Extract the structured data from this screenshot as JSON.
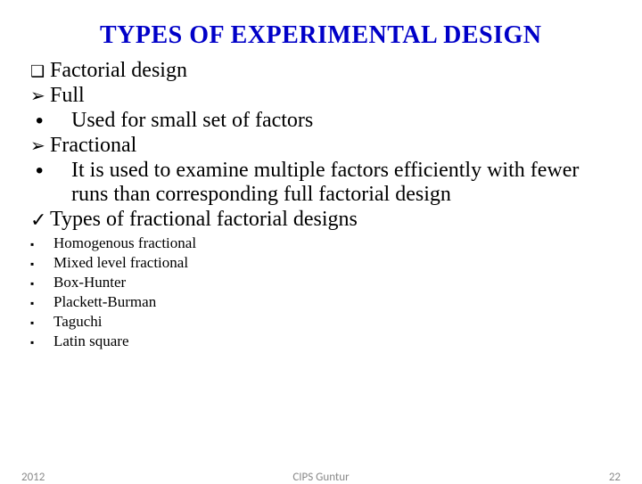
{
  "title": "TYPES OF EXPERIMENTAL DESIGN",
  "items": {
    "factorial": "Factorial design",
    "full": "Full",
    "full_desc": "Used for small set of factors",
    "fractional": "Fractional",
    "fractional_desc": "It is used to examine multiple factors efficiently with fewer runs than corresponding full factorial design",
    "types_heading": "Types of fractional factorial designs",
    "sub": [
      "Homogenous  fractional",
      "Mixed level fractional",
      "Box-Hunter",
      "Plackett-Burman",
      "Taguchi",
      "Latin square"
    ]
  },
  "footer": {
    "year": "2012",
    "center": "CIPS Guntur",
    "page": "22"
  },
  "colors": {
    "title": "#0000c8",
    "body": "#000000",
    "footer": "#8a8a8a",
    "background": "#ffffff"
  },
  "fonts": {
    "title_size": 28,
    "body_size": 24,
    "small_size": 17,
    "footer_size": 13
  }
}
